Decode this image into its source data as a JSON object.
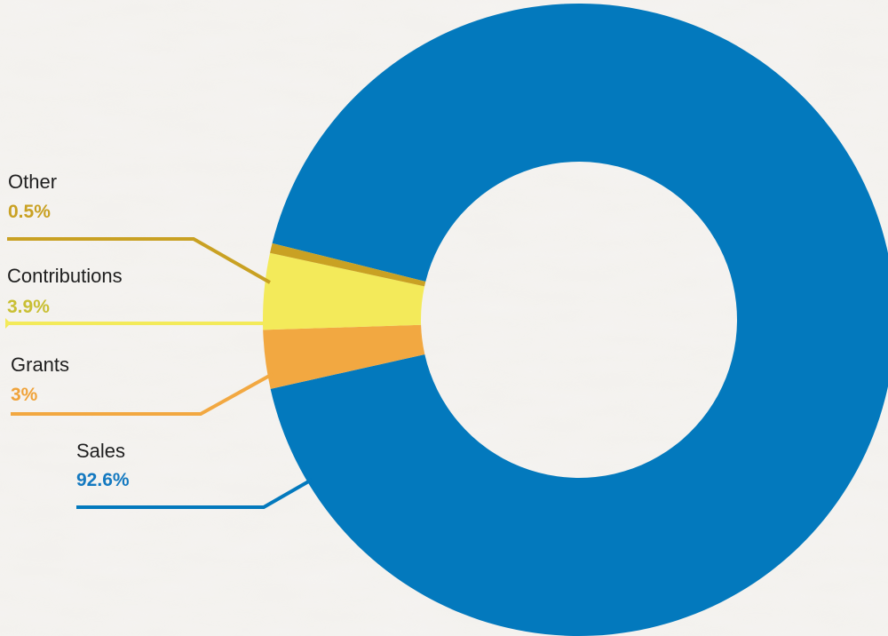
{
  "chart_data": {
    "type": "pie",
    "style": "donut",
    "slices": [
      {
        "label": "Sales",
        "value": 92.6,
        "value_label": "92.6%",
        "color": "#0379bd"
      },
      {
        "label": "Grants",
        "value": 3.0,
        "value_label": "3%",
        "color": "#f2a841"
      },
      {
        "label": "Contributions",
        "value": 3.9,
        "value_label": "3.9%",
        "color": "#f3ea5a"
      },
      {
        "label": "Other",
        "value": 0.5,
        "value_label": "0.5%",
        "color": "#c9a123"
      }
    ],
    "pct_label_colors": {
      "Sales": "#1479c0",
      "Grants": "#f0a33a",
      "Contributions": "#c9bf33",
      "Other": "#c9a123"
    },
    "legend": "callout labels on left"
  }
}
